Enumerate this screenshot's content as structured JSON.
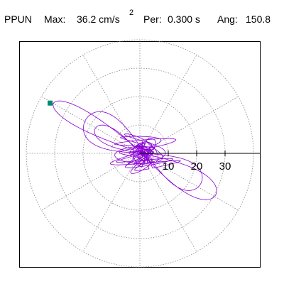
{
  "header": {
    "station": "PPUN",
    "max_label": "Max:",
    "max_value": "36.2 cm/s",
    "max_exponent": "2",
    "period_label": "Per:",
    "period_value": "0.300 s",
    "angle_label": "Ang:",
    "angle_value": "150.8"
  },
  "colors": {
    "trace": "#8a00d4",
    "marker": "#008a6e",
    "grid": "#888888",
    "axis": "#000000"
  },
  "chart_data": {
    "type": "line",
    "subtype": "polar particle-motion hodogram",
    "title": "",
    "xlabel": "",
    "ylabel": "",
    "radial_rings": [
      10,
      20,
      30,
      40
    ],
    "spoke_angles_deg": [
      0,
      30,
      60,
      90,
      120,
      150,
      180,
      210,
      240,
      270,
      300,
      330
    ],
    "tick_labels": [
      "10",
      "20",
      "30"
    ],
    "max_amplitude": 36.2,
    "peak_angle_deg": 150.8,
    "peak_point": {
      "x": -31.6,
      "y": 17.7
    },
    "grid": true,
    "legend": false
  }
}
